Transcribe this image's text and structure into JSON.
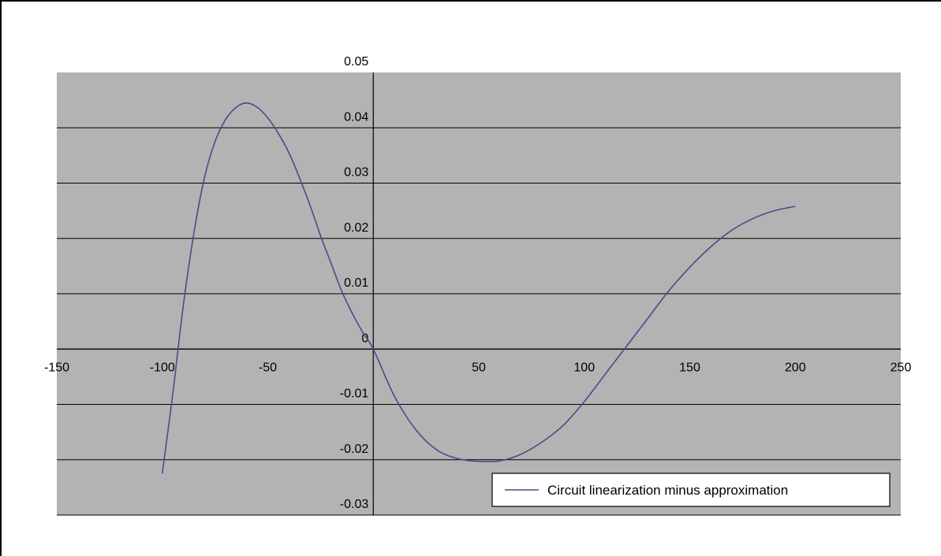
{
  "chart_data": {
    "type": "line",
    "title": "",
    "xlabel": "",
    "ylabel": "",
    "xlim": [
      -150,
      250
    ],
    "ylim": [
      -0.03,
      0.05
    ],
    "x_ticks": [
      -150,
      -100,
      -50,
      50,
      100,
      150,
      200,
      250
    ],
    "x_tick_labels": [
      "-150",
      "-100",
      "-50",
      "50",
      "100",
      "150",
      "200",
      "250"
    ],
    "y_ticks": [
      0.05,
      0.04,
      0.03,
      0.02,
      0.01,
      0,
      -0.01,
      -0.02,
      -0.03
    ],
    "y_tick_labels": [
      "0.05",
      "0.04",
      "0.03",
      "0.02",
      "0.01",
      "0",
      "-0.01",
      "-0.02",
      "-0.03"
    ],
    "grid": "horizontal",
    "plot_background": "#b3b3b3",
    "legend_position": "bottom-right",
    "series": [
      {
        "name": "Circuit linearization minus approximation",
        "color": "#4a4a8c",
        "x": [
          -100,
          -95,
          -90,
          -85,
          -80,
          -75,
          -70,
          -65,
          -60,
          -55,
          -50,
          -45,
          -40,
          -35,
          -30,
          -25,
          -20,
          -15,
          -10,
          -5,
          0,
          10,
          20,
          30,
          40,
          50,
          60,
          70,
          80,
          90,
          100,
          110,
          120,
          130,
          140,
          150,
          160,
          170,
          180,
          190,
          200
        ],
        "y": [
          -0.0225,
          -0.008,
          0.008,
          0.021,
          0.031,
          0.0375,
          0.0415,
          0.0437,
          0.0445,
          0.0437,
          0.0418,
          0.039,
          0.0355,
          0.031,
          0.026,
          0.0205,
          0.0155,
          0.0105,
          0.0065,
          0.003,
          0.0,
          -0.0085,
          -0.0145,
          -0.0182,
          -0.0198,
          -0.0203,
          -0.0202,
          -0.019,
          -0.0168,
          -0.0138,
          -0.0095,
          -0.0045,
          0.0005,
          0.0055,
          0.0105,
          0.0148,
          0.0185,
          0.0215,
          0.0236,
          0.025,
          0.0258
        ]
      }
    ]
  }
}
